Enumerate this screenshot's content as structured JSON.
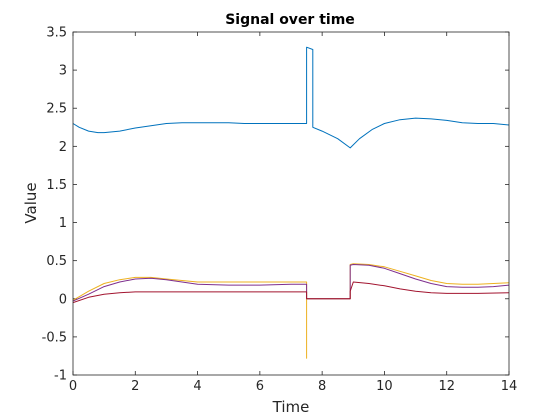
{
  "chart_data": {
    "type": "line",
    "title": "Signal over time",
    "xlabel": "Time",
    "ylabel": "Value",
    "xlim": [
      0,
      14
    ],
    "ylim": [
      -1,
      3.5
    ],
    "xticks": [
      0,
      2,
      4,
      6,
      8,
      10,
      12,
      14
    ],
    "yticks": [
      -1,
      -0.5,
      0,
      0.5,
      1,
      1.5,
      2,
      2.5,
      3,
      3.5
    ],
    "xtick_labels": [
      "0",
      "2",
      "4",
      "6",
      "8",
      "10",
      "12",
      "14"
    ],
    "ytick_labels": [
      "-1",
      "-0.5",
      "0",
      "0.5",
      "1",
      "1.5",
      "2",
      "2.5",
      "3",
      "3.5"
    ],
    "grid": false,
    "series": [
      {
        "color": "#0072BD",
        "x": [
          0,
          0.2,
          0.5,
          0.8,
          1.0,
          1.5,
          2.0,
          2.5,
          3.0,
          3.5,
          4.0,
          4.5,
          5.0,
          5.5,
          6.0,
          6.5,
          7.0,
          7.5,
          7.5,
          7.7,
          7.7,
          8.0,
          8.5,
          8.9,
          9.2,
          9.6,
          10.0,
          10.5,
          11.0,
          11.5,
          12.0,
          12.5,
          13.0,
          13.5,
          14.0
        ],
        "y": [
          2.3,
          2.25,
          2.2,
          2.18,
          2.18,
          2.2,
          2.24,
          2.27,
          2.3,
          2.31,
          2.31,
          2.31,
          2.31,
          2.3,
          2.3,
          2.3,
          2.3,
          2.3,
          3.3,
          3.27,
          2.25,
          2.2,
          2.1,
          1.98,
          2.1,
          2.22,
          2.3,
          2.35,
          2.37,
          2.36,
          2.34,
          2.31,
          2.3,
          2.3,
          2.28
        ]
      },
      {
        "color": "#EDB120",
        "x": [
          0,
          0.5,
          1.0,
          1.5,
          2.0,
          2.5,
          3.0,
          3.5,
          4.0,
          5.0,
          6.0,
          7.0,
          7.5,
          7.5,
          7.5,
          7.5,
          7.6,
          8.9,
          8.9,
          9.0,
          9.5,
          10.0,
          10.5,
          11.0,
          11.5,
          12.0,
          12.5,
          13.0,
          13.5,
          14.0
        ],
        "y": [
          -0.02,
          0.1,
          0.2,
          0.25,
          0.28,
          0.28,
          0.26,
          0.24,
          0.22,
          0.22,
          0.22,
          0.22,
          0.22,
          -0.78,
          0.0,
          0.0,
          0.0,
          0.0,
          0.45,
          0.46,
          0.45,
          0.42,
          0.36,
          0.3,
          0.24,
          0.2,
          0.19,
          0.19,
          0.2,
          0.21
        ]
      },
      {
        "color": "#7E2F8E",
        "x": [
          0,
          0.5,
          1.0,
          1.5,
          2.0,
          2.5,
          3.0,
          3.5,
          4.0,
          5.0,
          6.0,
          7.0,
          7.5,
          7.5,
          8.9,
          8.9,
          9.0,
          9.5,
          10.0,
          10.5,
          11.0,
          11.5,
          12.0,
          12.5,
          13.0,
          13.5,
          14.0
        ],
        "y": [
          -0.03,
          0.06,
          0.16,
          0.22,
          0.26,
          0.27,
          0.25,
          0.22,
          0.19,
          0.18,
          0.18,
          0.19,
          0.19,
          0.0,
          0.0,
          0.44,
          0.45,
          0.44,
          0.4,
          0.33,
          0.26,
          0.2,
          0.16,
          0.15,
          0.15,
          0.16,
          0.18
        ]
      },
      {
        "color": "#A2142F",
        "x": [
          0,
          0.5,
          1.0,
          1.5,
          2.0,
          3.0,
          4.0,
          5.0,
          6.0,
          7.0,
          7.5,
          7.5,
          8.9,
          8.9,
          9.0,
          9.5,
          10.0,
          10.5,
          11.0,
          11.5,
          12.0,
          13.0,
          14.0
        ],
        "y": [
          -0.05,
          0.02,
          0.06,
          0.08,
          0.09,
          0.09,
          0.09,
          0.09,
          0.09,
          0.09,
          0.09,
          0.0,
          0.0,
          0.1,
          0.22,
          0.2,
          0.17,
          0.13,
          0.1,
          0.08,
          0.07,
          0.07,
          0.08
        ]
      }
    ]
  }
}
